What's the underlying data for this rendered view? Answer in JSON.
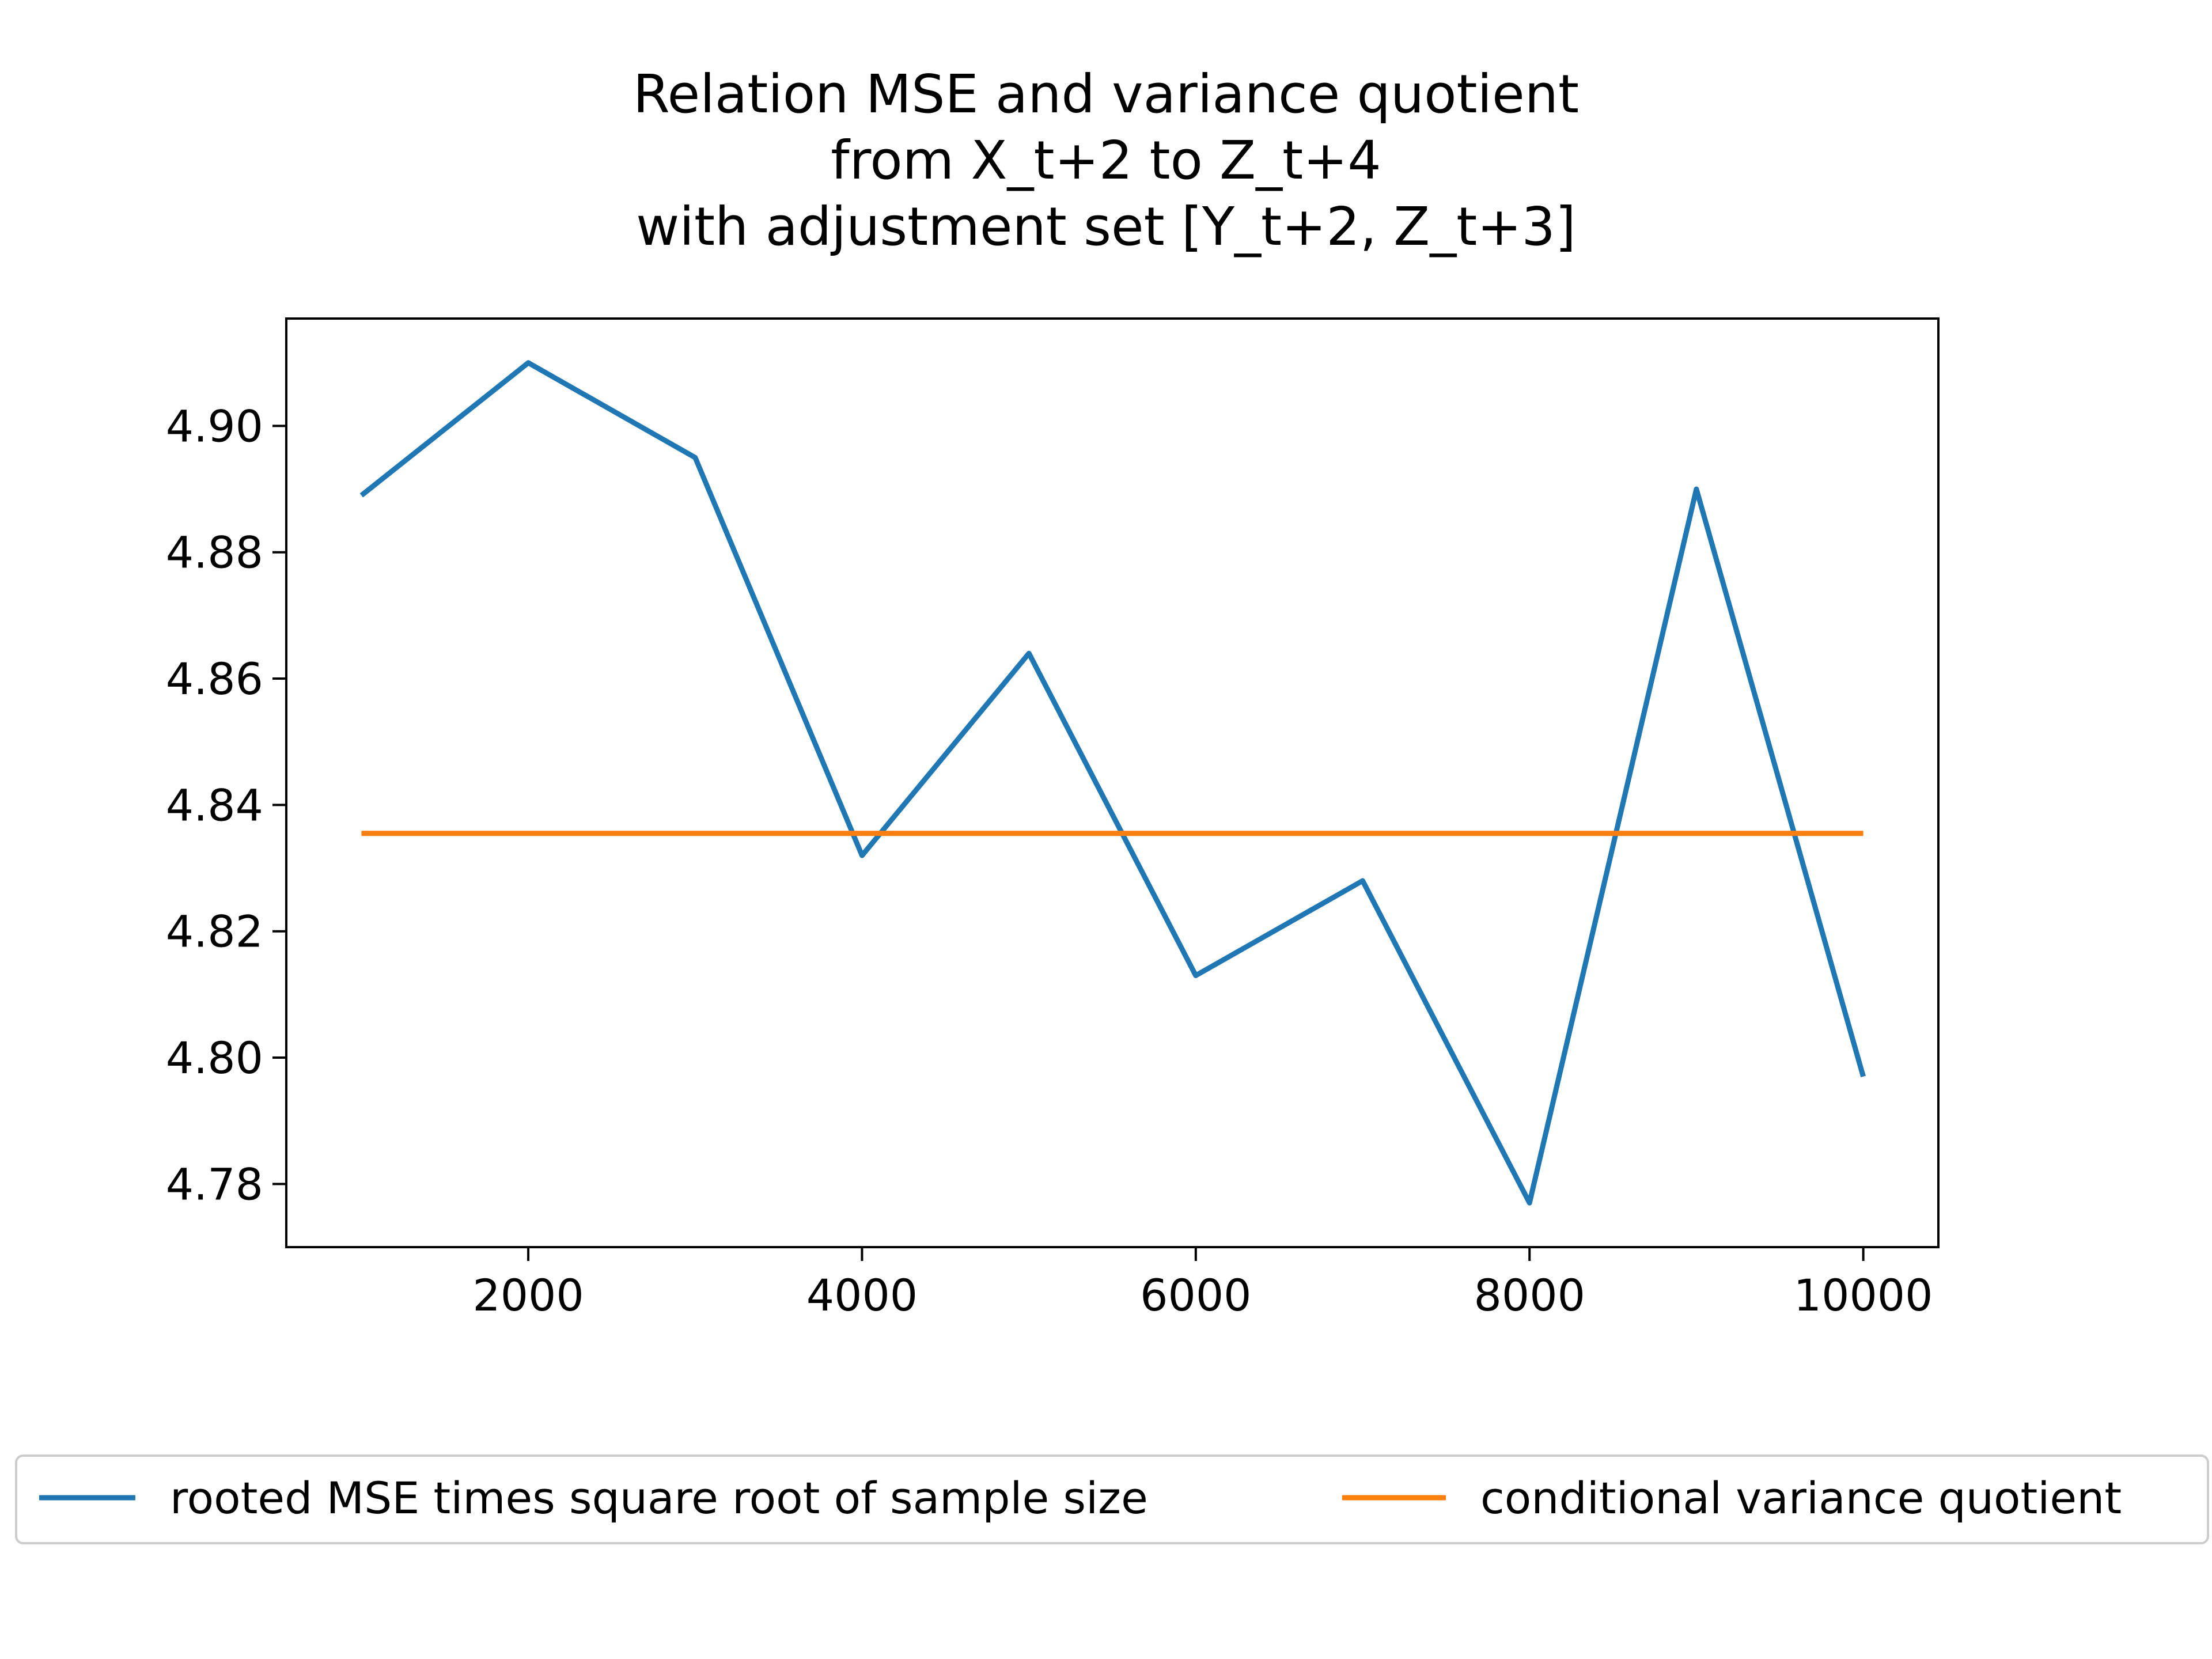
{
  "chart_data": {
    "type": "line",
    "title_lines": [
      "Relation MSE and variance quotient",
      "from X_t+2 to Z_t+4",
      "with adjustment set [Y_t+2, Z_t+3]"
    ],
    "xlabel": "",
    "ylabel": "",
    "xlim": [
      550,
      10450
    ],
    "ylim": [
      4.77,
      4.917
    ],
    "x_ticks": [
      2000,
      4000,
      6000,
      8000,
      10000
    ],
    "x_tick_labels": [
      "2000",
      "4000",
      "6000",
      "8000",
      "10000"
    ],
    "y_ticks": [
      4.78,
      4.8,
      4.82,
      4.84,
      4.86,
      4.88,
      4.9
    ],
    "y_tick_labels": [
      "4.78",
      "4.80",
      "4.82",
      "4.84",
      "4.86",
      "4.88",
      "4.90"
    ],
    "grid": false,
    "legend_position": "below plot, centered",
    "series": [
      {
        "name": "rooted MSE times square root of sample size",
        "color": "#1f77b4",
        "x": [
          1000,
          2000,
          3000,
          4000,
          5000,
          6000,
          7000,
          8000,
          9000,
          10000
        ],
        "y": [
          4.889,
          4.91,
          4.895,
          4.832,
          4.864,
          4.813,
          4.828,
          4.777,
          4.89,
          4.797
        ]
      },
      {
        "name": "conditional variance quotient",
        "color": "#ff7f0e",
        "x": [
          1000,
          10000
        ],
        "y": [
          4.8355,
          4.8355
        ]
      }
    ]
  }
}
